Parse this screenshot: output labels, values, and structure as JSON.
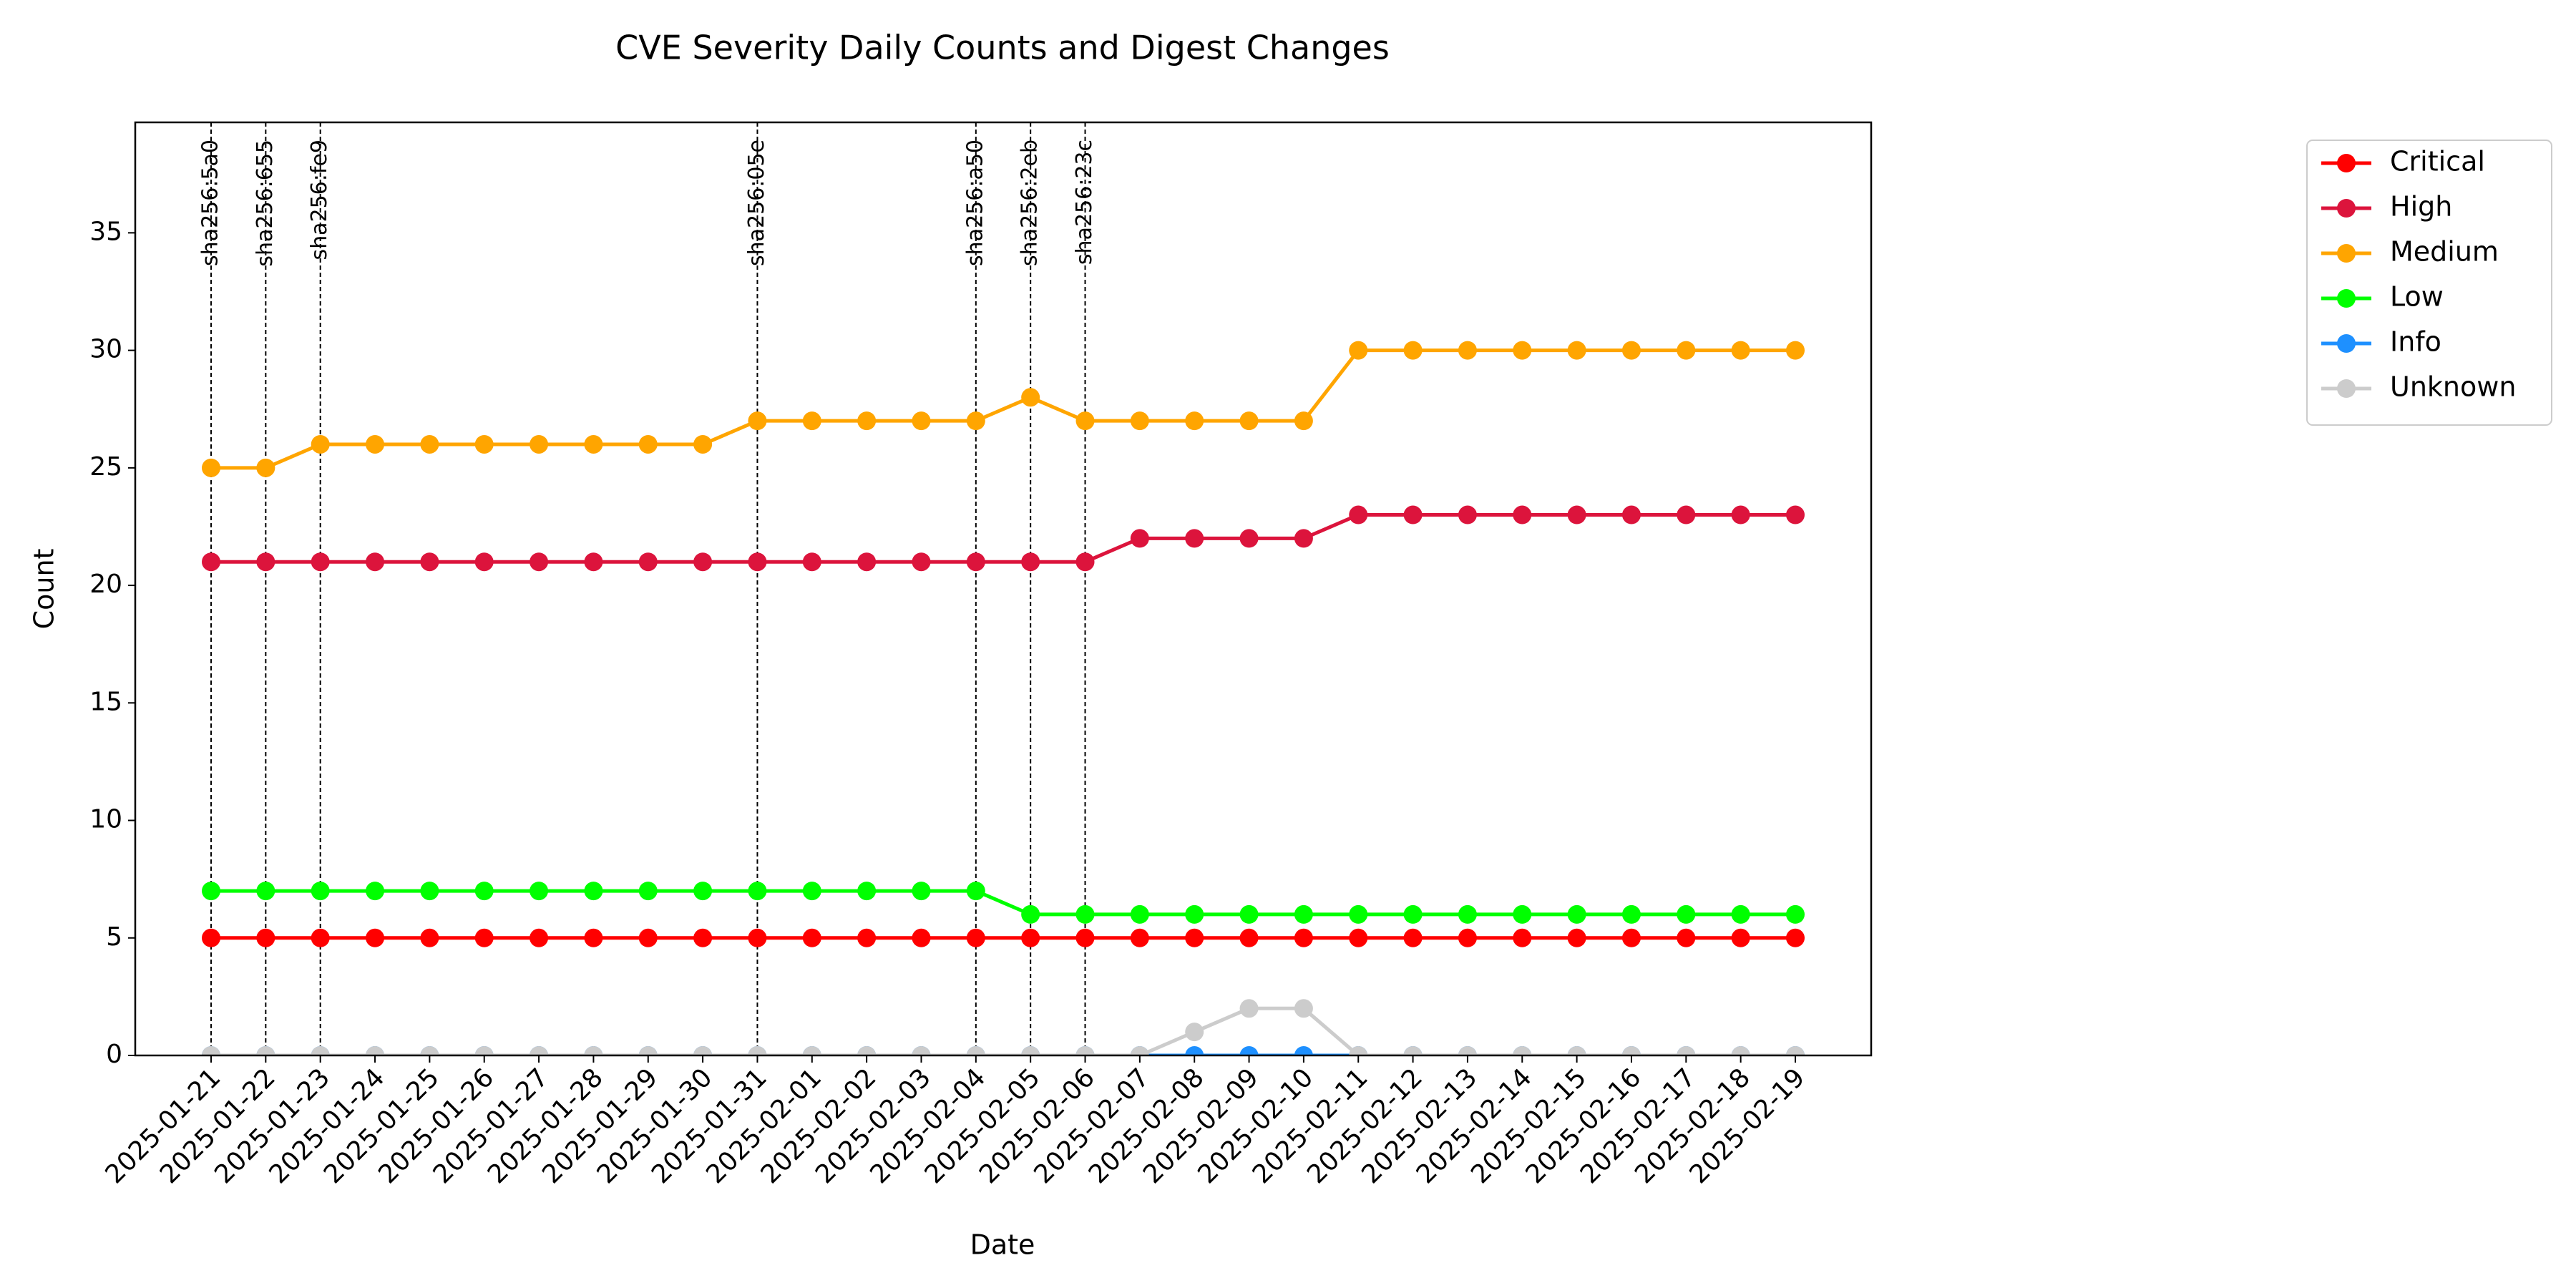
{
  "chart_data": {
    "type": "line",
    "title": "CVE Severity Daily Counts and Digest Changes",
    "x_label": "Date",
    "y_label": "Count",
    "categories": [
      "2025-01-21",
      "2025-01-22",
      "2025-01-23",
      "2025-01-24",
      "2025-01-25",
      "2025-01-26",
      "2025-01-27",
      "2025-01-28",
      "2025-01-29",
      "2025-01-30",
      "2025-01-31",
      "2025-02-01",
      "2025-02-02",
      "2025-02-03",
      "2025-02-04",
      "2025-02-05",
      "2025-02-06",
      "2025-02-07",
      "2025-02-08",
      "2025-02-09",
      "2025-02-10",
      "2025-02-11",
      "2025-02-12",
      "2025-02-13",
      "2025-02-14",
      "2025-02-15",
      "2025-02-16",
      "2025-02-17",
      "2025-02-18",
      "2025-02-19"
    ],
    "series": [
      {
        "name": "Critical",
        "color": "#ff0000",
        "values": [
          5,
          5,
          5,
          5,
          5,
          5,
          5,
          5,
          5,
          5,
          5,
          5,
          5,
          5,
          5,
          5,
          5,
          5,
          5,
          5,
          5,
          5,
          5,
          5,
          5,
          5,
          5,
          5,
          5,
          5
        ]
      },
      {
        "name": "High",
        "color": "#dc143c",
        "values": [
          21,
          21,
          21,
          21,
          21,
          21,
          21,
          21,
          21,
          21,
          21,
          21,
          21,
          21,
          21,
          21,
          21,
          22,
          22,
          22,
          22,
          23,
          23,
          23,
          23,
          23,
          23,
          23,
          23,
          23
        ]
      },
      {
        "name": "Medium",
        "color": "#ffa500",
        "values": [
          25,
          25,
          26,
          26,
          26,
          26,
          26,
          26,
          26,
          26,
          27,
          27,
          27,
          27,
          27,
          28,
          27,
          27,
          27,
          27,
          27,
          30,
          30,
          30,
          30,
          30,
          30,
          30,
          30,
          30
        ]
      },
      {
        "name": "Low",
        "color": "#00ff00",
        "values": [
          7,
          7,
          7,
          7,
          7,
          7,
          7,
          7,
          7,
          7,
          7,
          7,
          7,
          7,
          7,
          6,
          6,
          6,
          6,
          6,
          6,
          6,
          6,
          6,
          6,
          6,
          6,
          6,
          6,
          6
        ]
      },
      {
        "name": "Info",
        "color": "#1e90ff",
        "values": [
          0,
          0,
          0,
          0,
          0,
          0,
          0,
          0,
          0,
          0,
          0,
          0,
          0,
          0,
          0,
          0,
          0,
          0,
          0,
          0,
          0,
          0,
          0,
          0,
          0,
          0,
          0,
          0,
          0,
          0
        ]
      },
      {
        "name": "Unknown",
        "color": "#cccccc",
        "values": [
          0,
          0,
          0,
          0,
          0,
          0,
          0,
          0,
          0,
          0,
          0,
          0,
          0,
          0,
          0,
          0,
          0,
          0,
          1,
          2,
          2,
          0,
          0,
          0,
          0,
          0,
          0,
          0,
          0,
          0
        ]
      }
    ],
    "annotations": [
      {
        "x": "2025-01-21",
        "label": "sha256:5a0"
      },
      {
        "x": "2025-01-22",
        "label": "sha256:655"
      },
      {
        "x": "2025-01-23",
        "label": "sha256:fe9"
      },
      {
        "x": "2025-01-31",
        "label": "sha256:05e"
      },
      {
        "x": "2025-02-04",
        "label": "sha256:a50"
      },
      {
        "x": "2025-02-05",
        "label": "sha256:2eb"
      },
      {
        "x": "2025-02-06",
        "label": "sha256:23c"
      }
    ],
    "ylim": [
      0,
      39.7
    ],
    "yticks": [
      0,
      5,
      10,
      15,
      20,
      25,
      30,
      35
    ],
    "grid": false
  }
}
